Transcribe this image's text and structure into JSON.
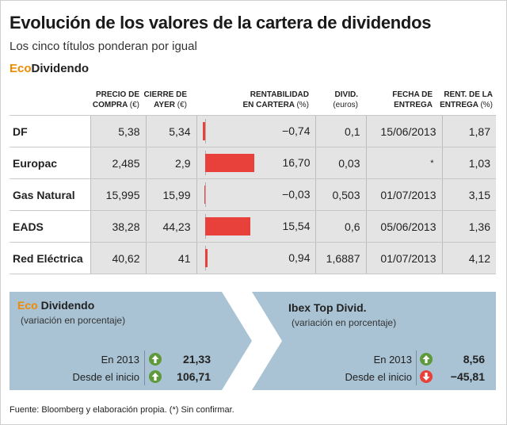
{
  "header": {
    "title": "Evolución de los valores de la cartera de dividendos",
    "subtitle": "Los cinco títulos ponderan por igual",
    "brand_eco": "Eco",
    "brand_rest": "Dividendo"
  },
  "columns": {
    "precio_l1": "PRECIO DE",
    "precio_l2": "COMPRA",
    "precio_unit": "(€)",
    "cierre_l1": "CIERRE DE",
    "cierre_l2": "AYER",
    "cierre_unit": "(€)",
    "rent_l1": "RENTABILIDAD",
    "rent_l2": "EN CARTERA",
    "rent_unit": "(%)",
    "divid_l1": "DIVID.",
    "divid_unit": "(euros)",
    "fecha_l1": "FECHA DE",
    "fecha_l2": "ENTREGA",
    "rentent_l1": "RENT. DE LA",
    "rentent_l2": "ENTREGA",
    "rentent_unit": "(%)"
  },
  "chart_data": {
    "type": "table",
    "bar_column": "rentabilidad",
    "bar_max": 16.7,
    "rows": [
      {
        "name": "DF",
        "precio": "5,38",
        "cierre": "5,34",
        "rentabilidad": -0.74,
        "rentabilidad_label": "−0,74",
        "divid": "0,1",
        "fecha": "15/06/2013",
        "rent_entrega": "1,87"
      },
      {
        "name": "Europac",
        "precio": "2,485",
        "cierre": "2,9",
        "rentabilidad": 16.7,
        "rentabilidad_label": "16,70",
        "divid": "0,03",
        "fecha": "*",
        "rent_entrega": "1,03"
      },
      {
        "name": "Gas Natural",
        "precio": "15,995",
        "cierre": "15,99",
        "rentabilidad": -0.03,
        "rentabilidad_label": "−0,03",
        "divid": "0,503",
        "fecha": "01/07/2013",
        "rent_entrega": "3,15"
      },
      {
        "name": "EADS",
        "precio": "38,28",
        "cierre": "44,23",
        "rentabilidad": 15.54,
        "rentabilidad_label": "15,54",
        "divid": "0,6",
        "fecha": "05/06/2013",
        "rent_entrega": "1,36"
      },
      {
        "name": "Red Eléctrica",
        "precio": "40,62",
        "cierre": "41",
        "rentabilidad": 0.94,
        "rentabilidad_label": "0,94",
        "divid": "1,6887",
        "fecha": "01/07/2013",
        "rent_entrega": "4,12"
      }
    ]
  },
  "panels": {
    "left": {
      "title_eco": "Eco",
      "title_rest": "Dividendo",
      "subtitle": "(variación en porcentaje)",
      "row1_label": "En 2013",
      "row1_value": "21,33",
      "row1_dir": "up",
      "row2_label": "Desde el inicio",
      "row2_value": "106,71",
      "row2_dir": "up"
    },
    "right": {
      "title": "Ibex Top Divid.",
      "subtitle": "(variación en porcentaje)",
      "row1_label": "En 2013",
      "row1_value": "8,56",
      "row1_dir": "up",
      "row2_label": "Desde el inicio",
      "row2_value": "−45,81",
      "row2_dir": "down"
    },
    "panel_color": "#a9c3d4",
    "up_color": "#5e9a3c",
    "down_color": "#e8403a"
  },
  "footer": {
    "source": "Fuente: Bloomberg y elaboración propia. (*) Sin confirmar."
  }
}
